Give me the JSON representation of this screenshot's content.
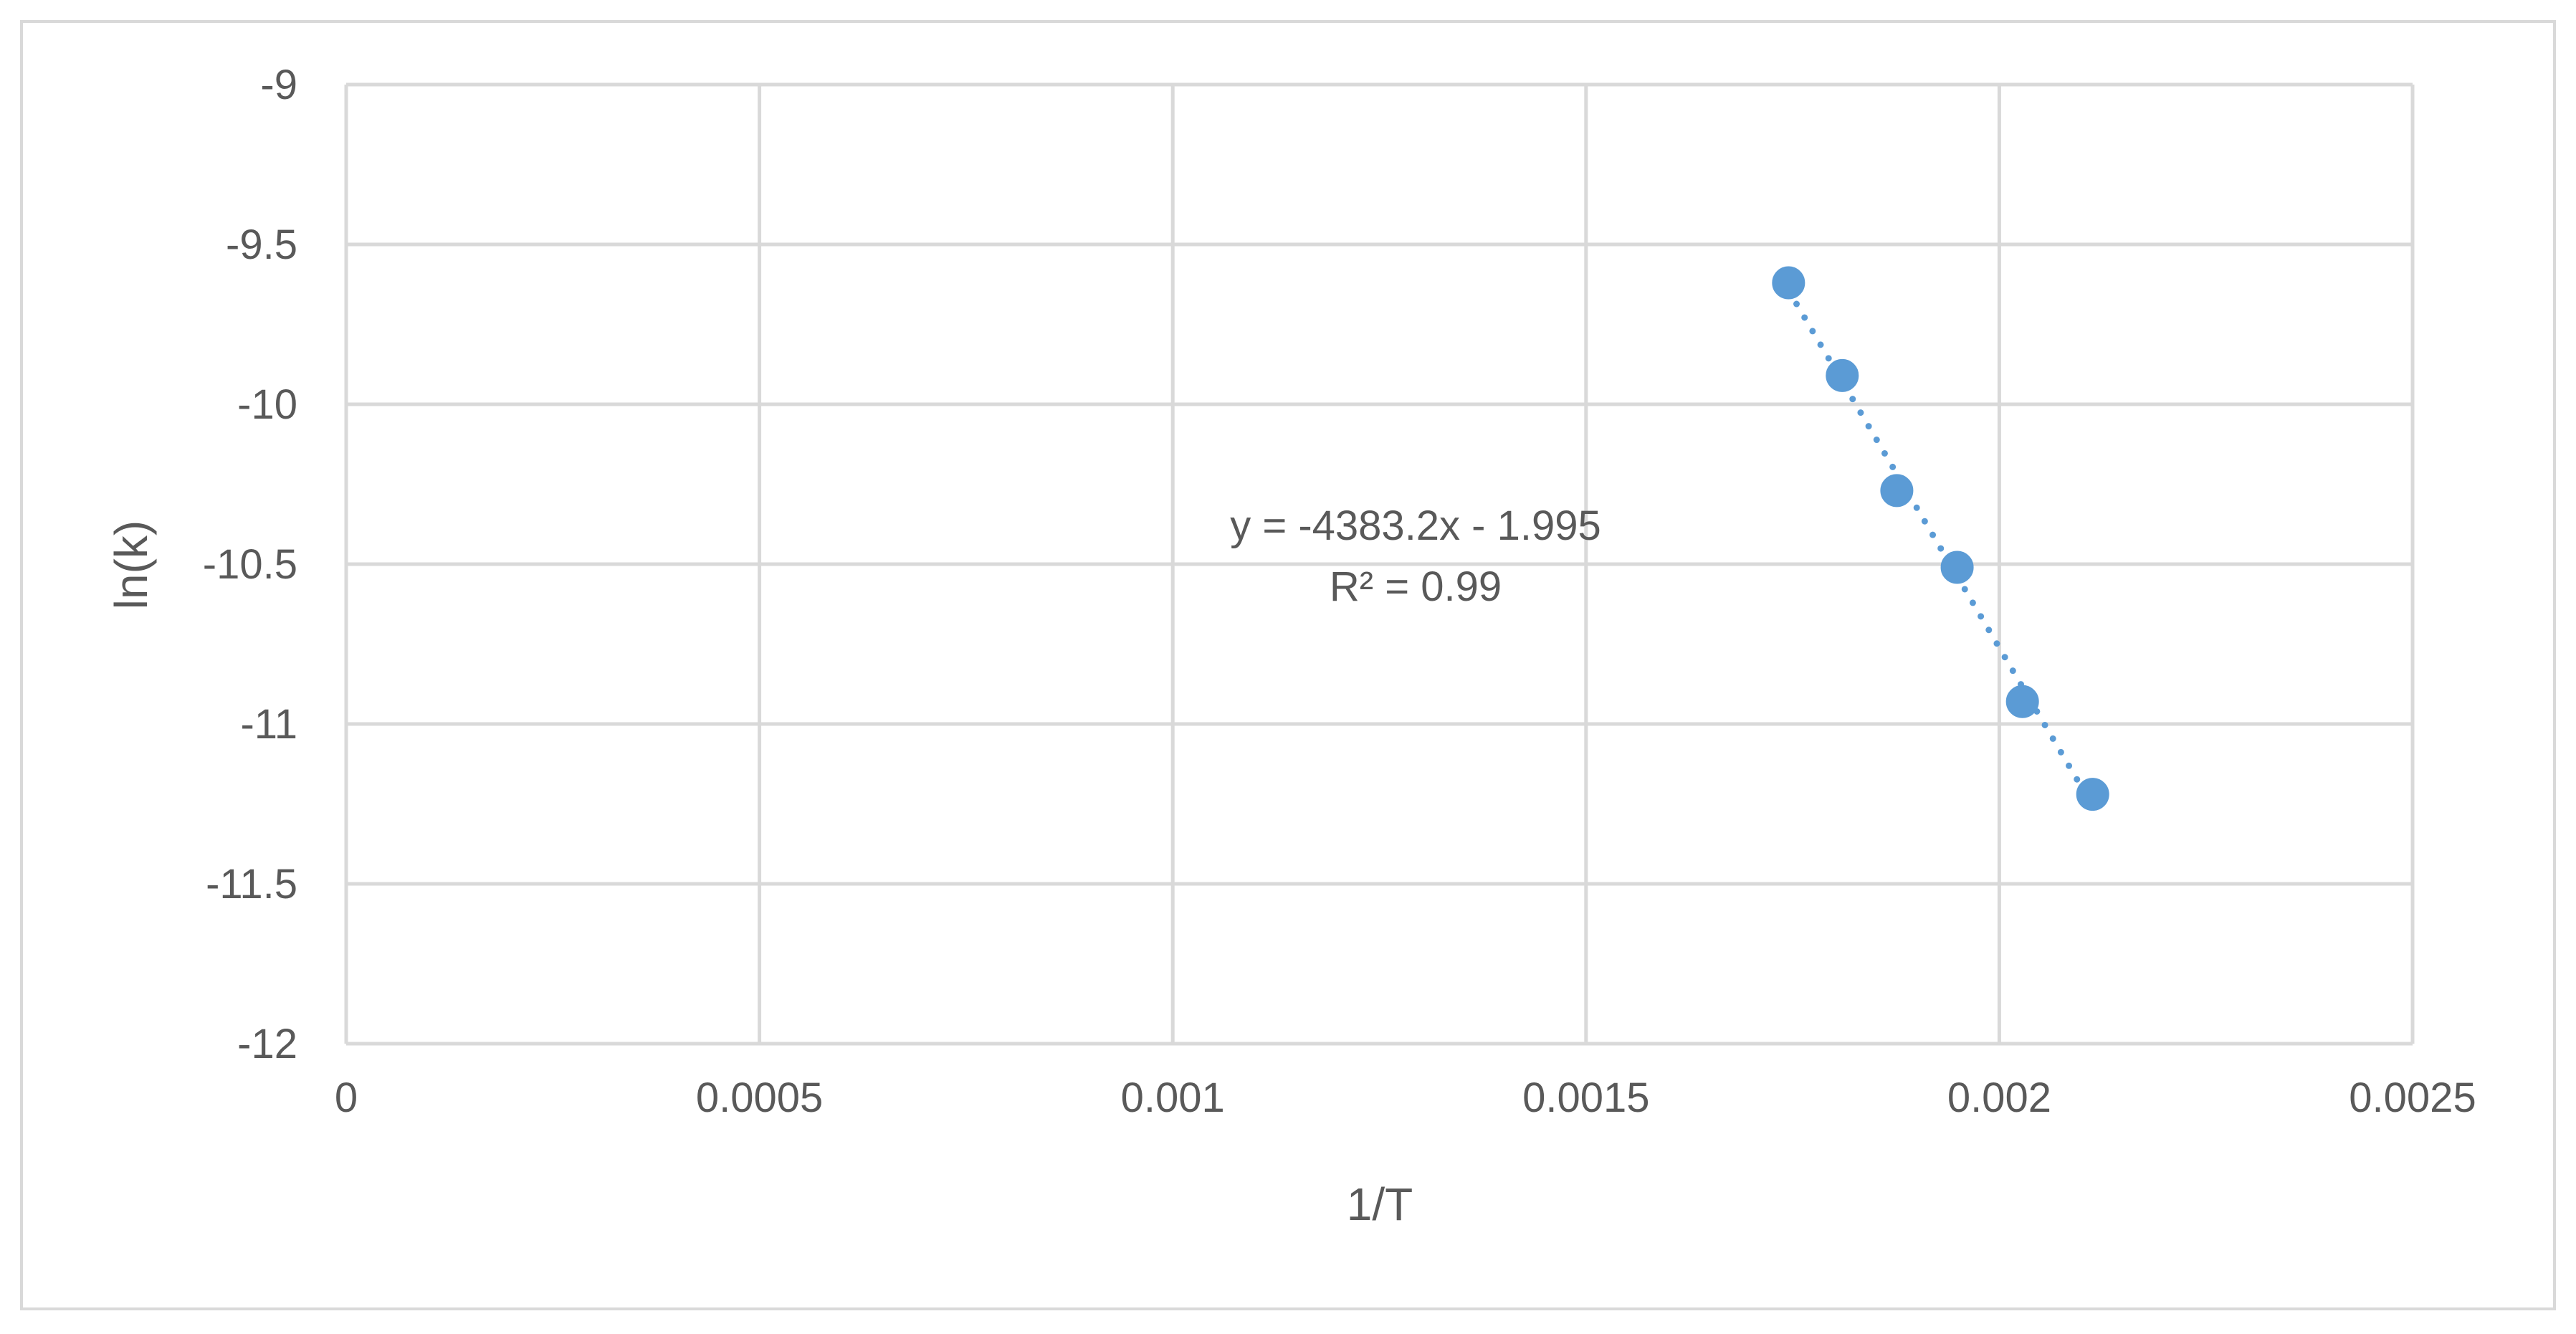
{
  "chart_data": {
    "type": "scatter",
    "xlabel": "1/T",
    "ylabel": "ln(k)",
    "xlim": [
      0,
      0.0025
    ],
    "ylim": [
      -12,
      -9
    ],
    "x_ticks": [
      0,
      0.0005,
      0.001,
      0.0015,
      0.002,
      0.0025
    ],
    "y_ticks": [
      -9,
      -9.5,
      -10,
      -10.5,
      -11,
      -11.5,
      -12
    ],
    "x_tick_labels": [
      "0",
      "0.0005",
      "0.001",
      "0.0015",
      "0.002",
      "0.0025"
    ],
    "y_tick_labels": [
      "-9",
      "-9.5",
      "-10",
      "-10.5",
      "-11",
      "-11.5",
      "-12"
    ],
    "grid": true,
    "legend": "none",
    "series": [
      {
        "color": "#5b9bd5",
        "x": [
          0.001745,
          0.00181,
          0.001876,
          0.001949,
          0.002028,
          0.002113
        ],
        "y": [
          -9.62,
          -9.91,
          -10.27,
          -10.51,
          -10.93,
          -11.22
        ]
      }
    ],
    "trendline": {
      "style": "dotted",
      "color": "#5b9bd5",
      "slope": -4383.2,
      "intercept": -1.995,
      "x_range": [
        0.001745,
        0.002113
      ],
      "equation_label": "y = -4383.2x - 1.995",
      "r2_label": "R² = 0.99"
    },
    "colors": {
      "grid": "#d9d9d9",
      "axis_text": "#595959",
      "frame_border": "#d9d9d9"
    }
  }
}
